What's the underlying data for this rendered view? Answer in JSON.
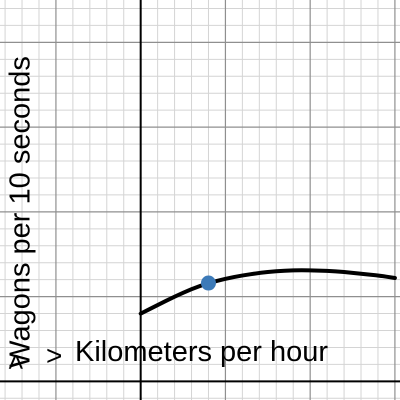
{
  "chart_data": {
    "type": "line",
    "xlabel": "Kilometers per hour",
    "ylabel": "Wagons per 10 seconds",
    "x_arrow": ">",
    "y_arrow": ">",
    "grid": true,
    "xlim": [
      -8.3,
      15.3
    ],
    "ylim": [
      -1.1,
      22.5
    ],
    "x_major_step": 5,
    "y_major_step": 5,
    "x_minor_step": 1,
    "y_minor_step": 1,
    "series": [
      {
        "x": [
          0,
          1,
          2,
          3,
          4,
          5,
          6,
          7,
          8,
          9,
          10,
          11,
          12,
          13,
          14,
          15
        ],
        "y": [
          4,
          4.5,
          5.0,
          5.45,
          5.8,
          6.05,
          6.25,
          6.4,
          6.5,
          6.55,
          6.55,
          6.52,
          6.45,
          6.35,
          6.25,
          6.1
        ]
      }
    ],
    "points": [
      {
        "x": 4,
        "y": 5.8,
        "color": "#3c7ab8"
      }
    ],
    "colors": {
      "curve": "#000000",
      "point": "#3c7ab8",
      "grid_minor": "#d4d4d4",
      "grid_major": "#8f8f8f",
      "axis": "#000000"
    }
  }
}
